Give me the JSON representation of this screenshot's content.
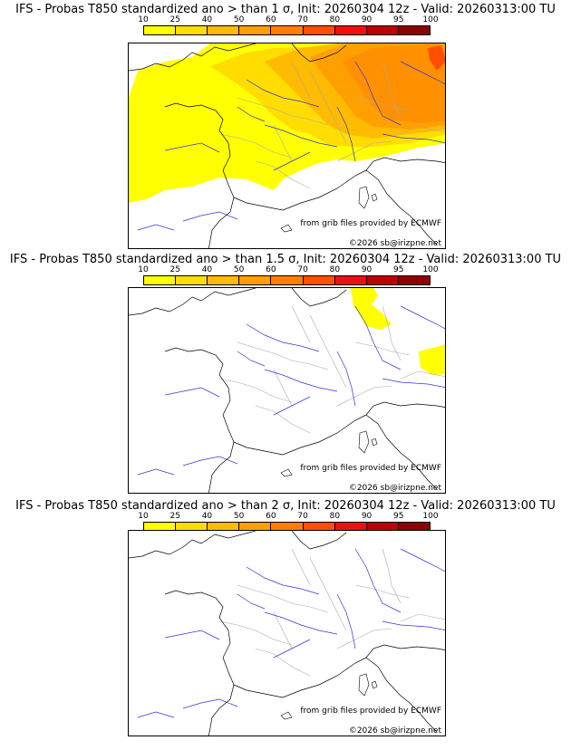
{
  "colorbar": {
    "ticks": [
      "10",
      "25",
      "40",
      "50",
      "60",
      "70",
      "80",
      "90",
      "95",
      "100"
    ],
    "colors": [
      "#ffff00",
      "#ffdd00",
      "#ffbb00",
      "#ffa000",
      "#ff8000",
      "#ff5000",
      "#ee1010",
      "#c00000",
      "#900000"
    ]
  },
  "panels": [
    {
      "title": "IFS - Probas T850  standardized ano > than 1 σ, Init: 20260304 12z - Valid: 20260313:00 TU",
      "threshold_sigma": 1,
      "credit_provider": "from grib files provided by ECMWF",
      "credit_copyright": "©2026 sb@irizpne.net"
    },
    {
      "title": "IFS - Probas T850  standardized ano > than 1.5 σ, Init: 20260304 12z - Valid: 20260313:00 TU",
      "threshold_sigma": 1.5,
      "credit_provider": "from grib files provided by ECMWF",
      "credit_copyright": "©2026 sb@irizpne.net"
    },
    {
      "title": "IFS - Probas T850  standardized ano > than 2 σ, Init: 20260304 12z - Valid: 20260313:00 TU",
      "threshold_sigma": 2,
      "credit_provider": "from grib files provided by ECMWF",
      "credit_copyright": "©2026 sb@irizpne.net"
    }
  ],
  "colors": {
    "coast": "#000000",
    "rivers": "#3333dd",
    "borders": "#aaaaaa"
  }
}
